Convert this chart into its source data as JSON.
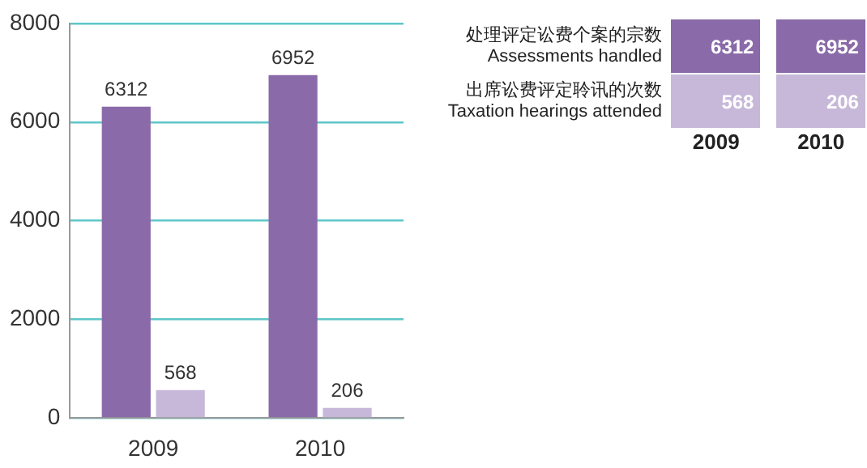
{
  "chart_data": [
    {
      "type": "bar",
      "categories": [
        "2009",
        "2010"
      ],
      "series": [
        {
          "color": "#8a6aa8",
          "values": [
            6312,
            6952
          ]
        },
        {
          "color": "#c7b8d9",
          "values": [
            568,
            206
          ]
        }
      ],
      "ylim": [
        0,
        8000
      ],
      "yticks": [
        0,
        2000,
        4000,
        6000,
        8000
      ],
      "grid": "y",
      "data_labels": true
    },
    {
      "type": "other",
      "categories": [
        "2009",
        "2010"
      ],
      "y_categories": [
        "处理评定讼费个案的宗数\nAssessments handled",
        "出席讼费评定聆讯的次数\nTaxation hearings attended"
      ],
      "annotations": [
        "6312",
        "6952",
        "568",
        "206"
      ],
      "colors": [
        "#8a6aa8",
        "#c7b8d9"
      ]
    }
  ]
}
